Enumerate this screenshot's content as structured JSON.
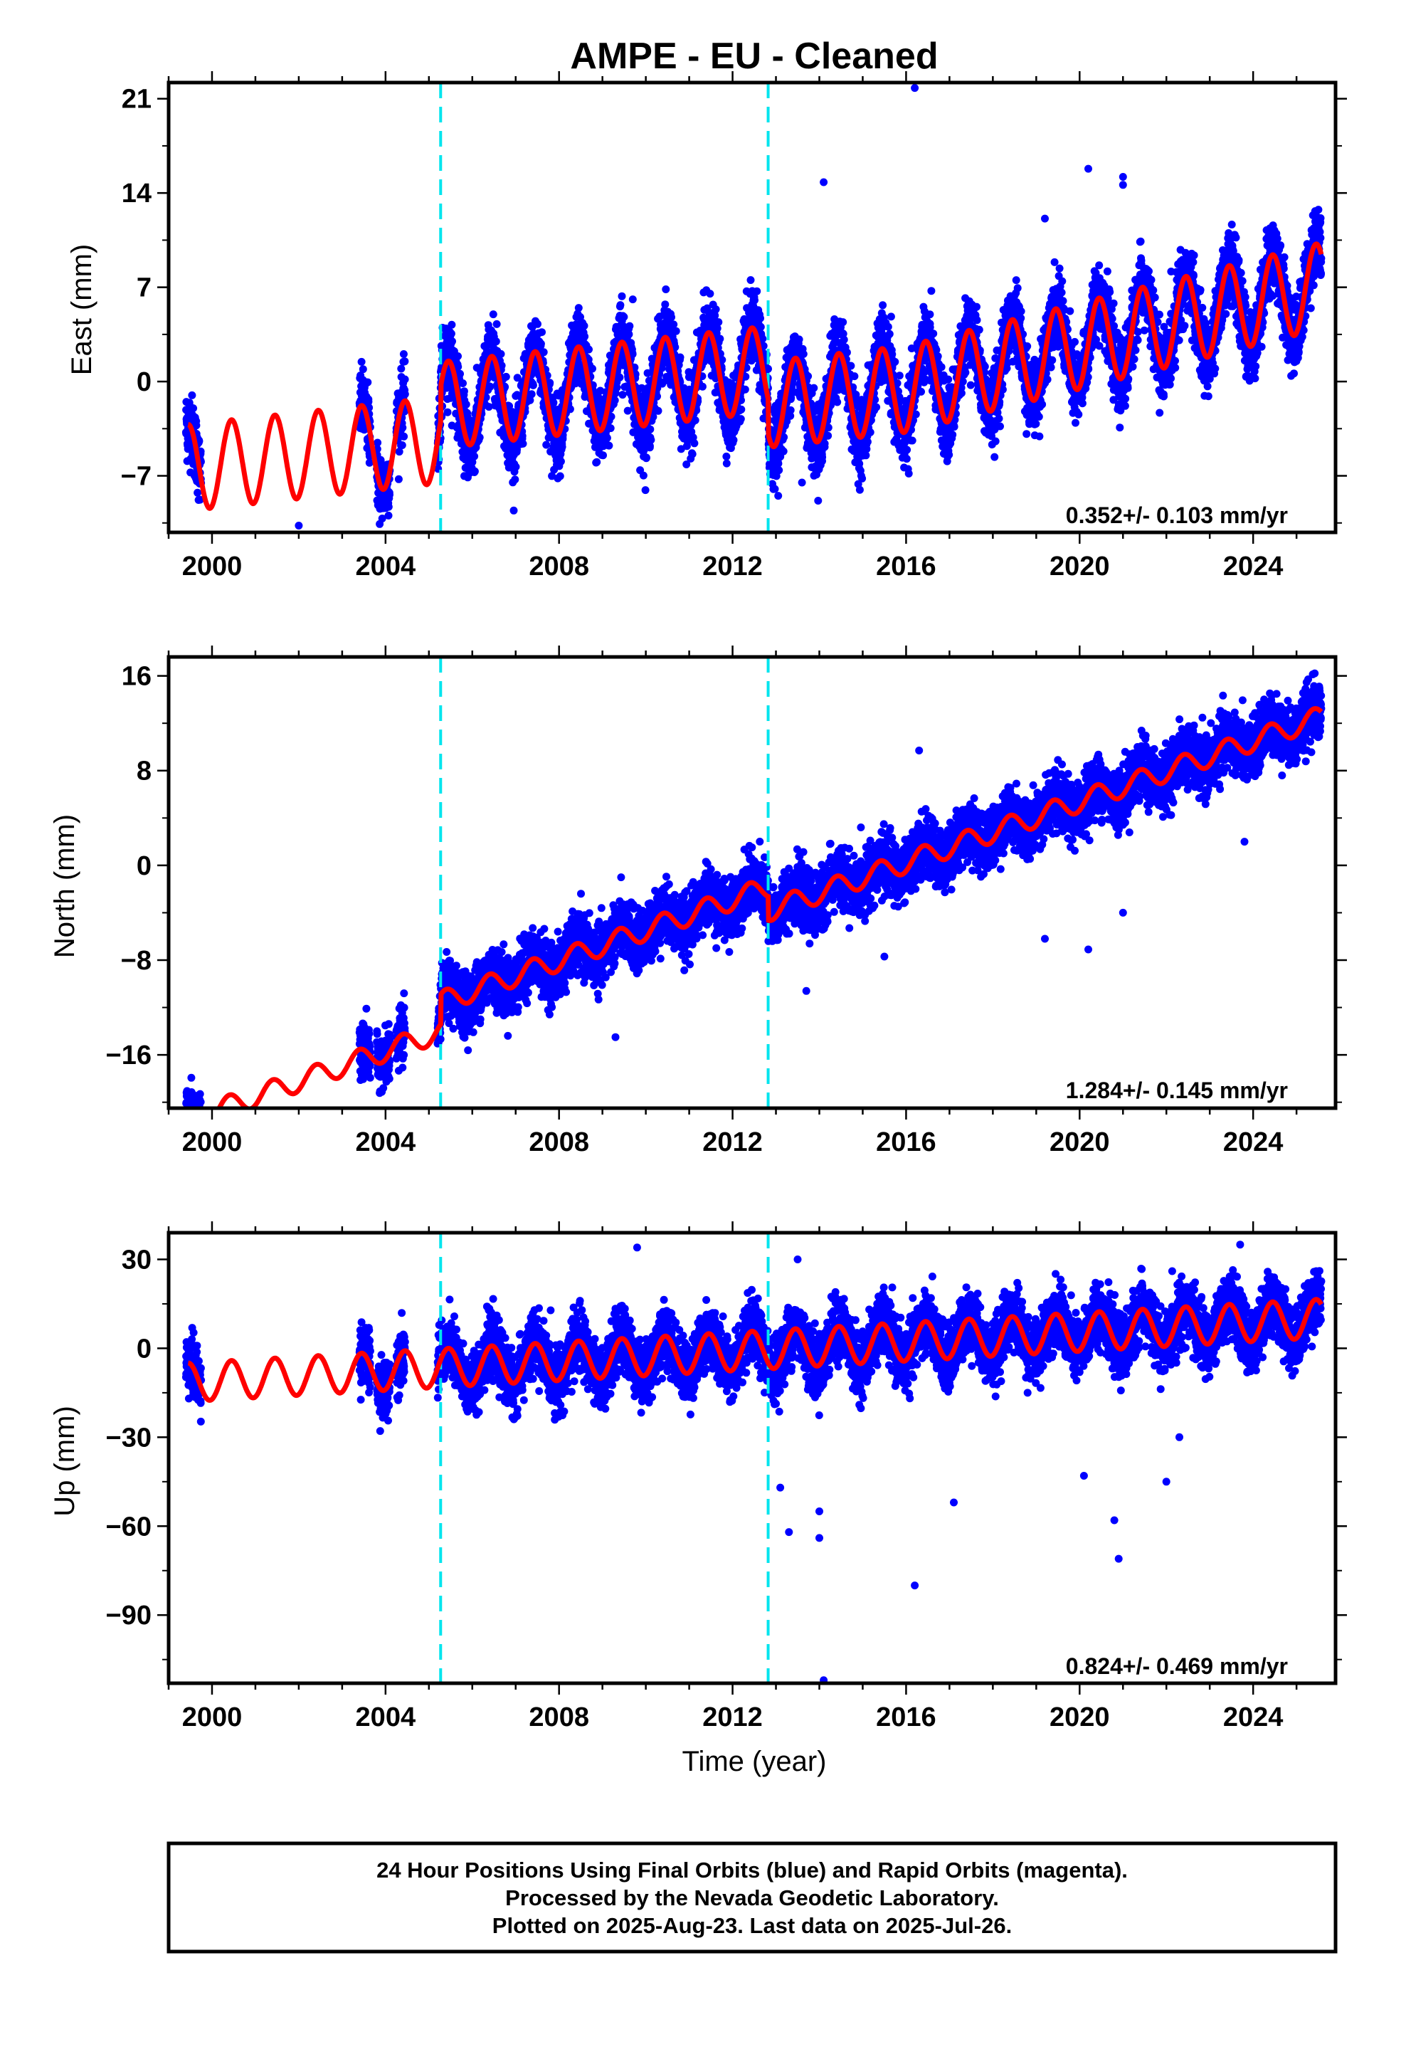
{
  "title": "AMPE  - EU - Cleaned",
  "xlabel": "Time (year)",
  "footer": {
    "line1": "24 Hour Positions Using Final Orbits (blue) and Rapid Orbits (magenta).",
    "line2": "Processed by the Nevada Geodetic Laboratory.",
    "line3": "Plotted on 2025-Aug-23. Last data on 2025-Jul-26."
  },
  "colors": {
    "data": "#0000ff",
    "model": "#ff0000",
    "offset_line": "#00e5ee"
  },
  "chart_data": [
    {
      "type": "scatter",
      "component": "east",
      "ylabel": "East (mm)",
      "rate_label": "0.352+/- 0.103 mm/yr",
      "xlim": [
        1999.0,
        2025.9
      ],
      "ylim": [
        -11.2,
        22.2
      ],
      "yticks": [
        -7,
        0,
        7,
        14,
        21
      ],
      "xticks": [
        2000,
        2004,
        2008,
        2012,
        2016,
        2020,
        2024
      ],
      "offsets": [
        2005.27,
        2012.82
      ],
      "data_segments": [
        [
          1999.4,
          1999.75
        ],
        [
          2003.4,
          2003.65
        ],
        [
          2003.8,
          2004.1
        ],
        [
          2004.25,
          2004.45
        ],
        [
          2005.2,
          2025.57
        ]
      ],
      "model": {
        "rate": 0.352,
        "intercept_2000": -6.2,
        "annual_amp": 3.2,
        "annual_phase_peak": 0.45,
        "offsets": [
          {
            "epoch": 2005.27,
            "step": 2.6
          },
          {
            "epoch": 2012.82,
            "step": -2.6
          }
        ],
        "late_trend": {
          "start": 2016.0,
          "slope": 0.45
        }
      },
      "scatter_sigma": 1.3,
      "outliers": [
        [
          2016.2,
          21.8
        ],
        [
          2014.1,
          14.8
        ],
        [
          2020.2,
          15.8
        ],
        [
          2021.0,
          15.2
        ],
        [
          2021.0,
          14.6
        ],
        [
          2019.2,
          12.1
        ],
        [
          2002.0,
          -10.7
        ],
        [
          2013.6,
          -7.5
        ],
        [
          2009.7,
          6.1
        ]
      ]
    },
    {
      "type": "scatter",
      "component": "north",
      "ylabel": "North (mm)",
      "rate_label": "1.284+/- 0.145 mm/yr",
      "xlim": [
        1999.0,
        2025.9
      ],
      "ylim": [
        -20.5,
        17.6
      ],
      "yticks": [
        -16,
        -8,
        0,
        8,
        16
      ],
      "xticks": [
        2000,
        2004,
        2008,
        2012,
        2016,
        2020,
        2024
      ],
      "offsets": [
        2005.27,
        2012.82
      ],
      "data_segments": [
        [
          1999.4,
          1999.75
        ],
        [
          2003.4,
          2003.65
        ],
        [
          2003.8,
          2004.1
        ],
        [
          2004.25,
          2004.45
        ],
        [
          2005.2,
          2025.57
        ]
      ],
      "model": {
        "rate": 1.284,
        "intercept_2000": -20.8,
        "annual_amp": 0.9,
        "annual_phase_peak": 0.4,
        "offsets": [
          {
            "epoch": 2005.27,
            "step": 2.5
          },
          {
            "epoch": 2012.82,
            "step": -2.0
          }
        ],
        "late_trend": {
          "start": 2005.3,
          "slope": 0.0
        }
      },
      "scatter_sigma": 1.2,
      "outliers": [
        [
          2009.3,
          -14.5
        ],
        [
          2016.3,
          9.7
        ],
        [
          2020.2,
          -7.1
        ],
        [
          2019.2,
          -6.2
        ],
        [
          2013.7,
          -10.6
        ],
        [
          2015.5,
          -7.7
        ],
        [
          2021.0,
          -4.0
        ],
        [
          2023.8,
          2.0
        ]
      ]
    },
    {
      "type": "scatter",
      "component": "up",
      "ylabel": "Up (mm)",
      "rate_label": "0.824+/- 0.469 mm/yr",
      "xlim": [
        1999.0,
        2025.9
      ],
      "ylim": [
        -113,
        39
      ],
      "yticks": [
        -90,
        -60,
        -30,
        0,
        30
      ],
      "xticks": [
        2000,
        2004,
        2008,
        2012,
        2016,
        2020,
        2024
      ],
      "offsets": [
        2005.27,
        2012.82
      ],
      "data_segments": [
        [
          1999.4,
          1999.75
        ],
        [
          2003.4,
          2003.65
        ],
        [
          2003.8,
          2004.1
        ],
        [
          2004.25,
          2004.45
        ],
        [
          2005.2,
          2025.57
        ]
      ],
      "model": {
        "rate": 0.824,
        "intercept_2000": -11.0,
        "annual_amp": 6.5,
        "annual_phase_peak": 0.45,
        "offsets": [
          {
            "epoch": 2005.27,
            "step": 0.0
          },
          {
            "epoch": 2012.82,
            "step": 0.0
          }
        ],
        "late_trend": {
          "start": 2005.3,
          "slope": 0.0
        }
      },
      "scatter_sigma": 5.0,
      "outliers": [
        [
          2014.1,
          -112
        ],
        [
          2016.2,
          -80
        ],
        [
          2014.0,
          -64
        ],
        [
          2013.3,
          -62
        ],
        [
          2017.1,
          -52
        ],
        [
          2020.1,
          -43
        ],
        [
          2020.9,
          -71
        ],
        [
          2020.8,
          -58
        ],
        [
          2022.0,
          -45
        ],
        [
          2022.3,
          -30
        ],
        [
          2009.8,
          34
        ],
        [
          2023.7,
          35
        ],
        [
          2013.5,
          30
        ],
        [
          2014.0,
          -55
        ],
        [
          2013.1,
          -47
        ]
      ]
    }
  ]
}
